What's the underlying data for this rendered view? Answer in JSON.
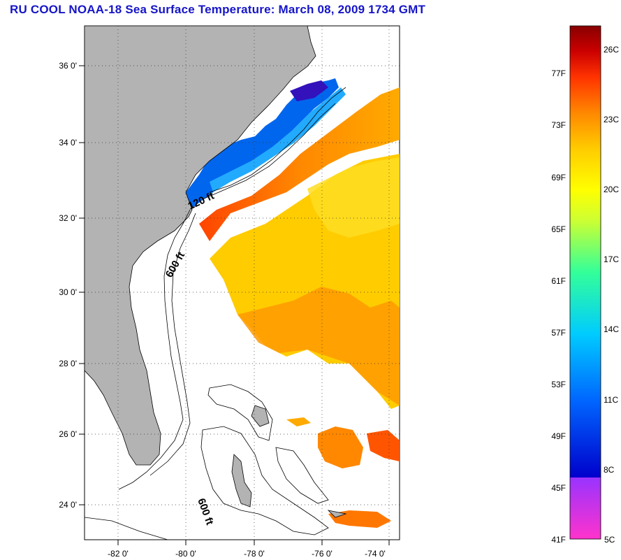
{
  "title": "RU COOL  NOAA-18  Sea Surface Temperature:  March 08, 2009 1734 GMT",
  "map": {
    "lat_labels": [
      "36 0'",
      "34 0'",
      "32 0'",
      "30 0'",
      "28 0'",
      "26 0'",
      "24 0'"
    ],
    "lon_labels": [
      "-82 0'",
      "-80 0'",
      "-78 0'",
      "-76 0'",
      "-74 0'"
    ],
    "contour_labels": [
      "120 ft",
      "600 ft",
      "600 ft"
    ],
    "land_color": "#b3b3b3",
    "grid": true
  },
  "colorbar": {
    "fahrenheit_labels": [
      "41F",
      "45F",
      "49F",
      "53F",
      "57F",
      "61F",
      "65F",
      "69F",
      "73F",
      "77F"
    ],
    "celsius_labels": [
      "5C",
      "8C",
      "11C",
      "14C",
      "17C",
      "20C",
      "23C",
      "26C"
    ],
    "colors": [
      "#ff33cc",
      "#9933ff",
      "#0000cc",
      "#0066ff",
      "#00ccff",
      "#33ff99",
      "#ccff33",
      "#ffff00",
      "#ffcc00",
      "#ff8800",
      "#ff3300",
      "#cc0000",
      "#880000"
    ]
  }
}
